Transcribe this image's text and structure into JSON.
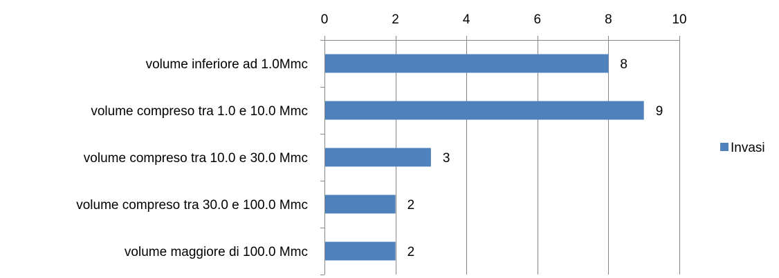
{
  "chart_data": {
    "type": "bar",
    "orientation": "horizontal",
    "categories": [
      "volume inferiore ad 1.0Mmc",
      "volume compreso tra 1.0 e 10.0 Mmc",
      "volume compreso tra 10.0 e 30.0 Mmc",
      "volume compreso tra 30.0 e 100.0 Mmc",
      "volume maggiore di 100.0 Mmc"
    ],
    "series": [
      {
        "name": "Invasi",
        "values": [
          8,
          9,
          3,
          2,
          2
        ],
        "color": "#4F81BD"
      }
    ],
    "xlim": [
      0,
      10
    ],
    "xticks": [
      0,
      2,
      4,
      6,
      8,
      10
    ],
    "x_axis_position": "top",
    "grid": true,
    "data_labels": true,
    "legend_position": "right"
  }
}
